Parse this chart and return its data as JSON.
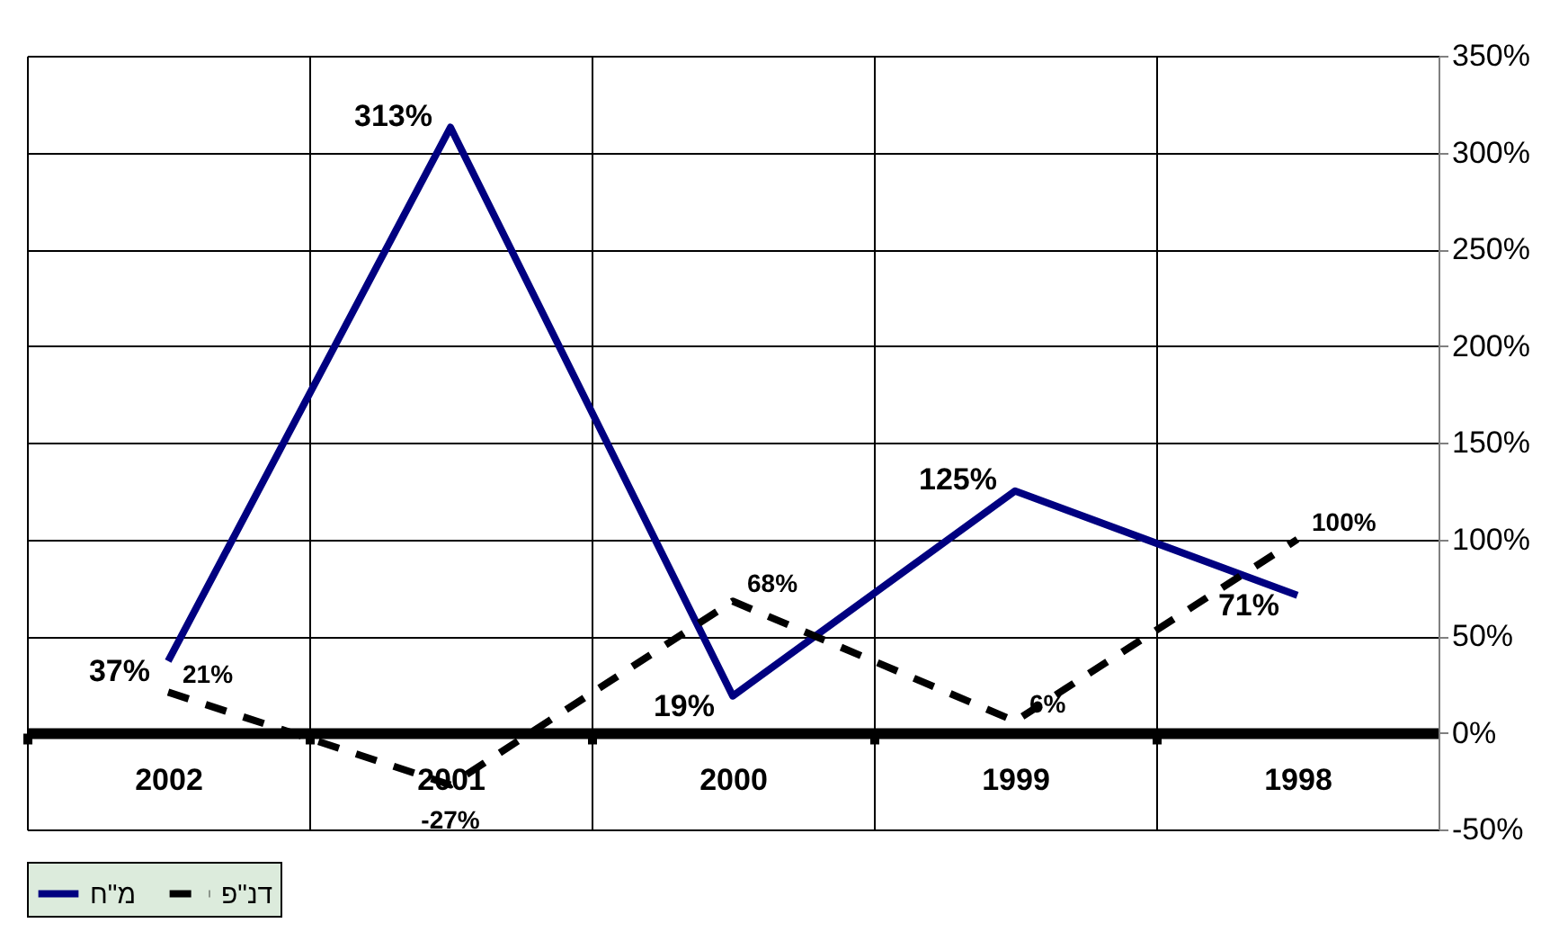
{
  "chart_data": {
    "type": "line",
    "categories": [
      "2002",
      "2001",
      "2000",
      "1999",
      "1998"
    ],
    "series": [
      {
        "name": "מ\"ח",
        "color": "#000080",
        "line_style": "solid",
        "values": [
          37,
          313,
          19,
          125,
          71
        ]
      },
      {
        "name": "דנ\"פ",
        "color": "#000000",
        "line_style": "dashed",
        "values": [
          21,
          -27,
          68,
          6,
          100
        ]
      }
    ],
    "ylim": [
      -50,
      350
    ],
    "yticks": [
      {
        "value": -50,
        "label": "-50%"
      },
      {
        "value": 0,
        "label": "0%"
      },
      {
        "value": 50,
        "label": "50%"
      },
      {
        "value": 100,
        "label": "100%"
      },
      {
        "value": 150,
        "label": "150%"
      },
      {
        "value": 200,
        "label": "200%"
      },
      {
        "value": 250,
        "label": "250%"
      },
      {
        "value": 300,
        "label": "300%"
      },
      {
        "value": 350,
        "label": "350%"
      }
    ],
    "value_labels": [
      [
        "37%",
        "313%",
        "19%",
        "125%",
        "71%"
      ],
      [
        "21%",
        "-27%",
        "68%",
        "6%",
        "100%"
      ]
    ],
    "grid": true,
    "legend": "bottom",
    "marker": "none"
  }
}
